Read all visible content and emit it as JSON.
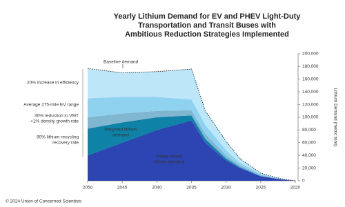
{
  "chart_data": {
    "type": "stacked-area",
    "title": [
      "Yearly Lithium Demand for EV and PHEV Light-Duty",
      "Transportation and Transit Buses with",
      "Ambitious Reduction Strategies Implemented"
    ],
    "y_label": "Lithium Demand (metric tons)",
    "x": [
      2020,
      2022,
      2025,
      2028,
      2030,
      2033,
      2035,
      2040,
      2045,
      2050
    ],
    "series": [
      {
        "color": "#2c45b3",
        "values": [
          0,
          2000,
          7000,
          20000,
          32000,
          60000,
          95000,
          80000,
          60000,
          40000
        ]
      },
      {
        "color": "#0f82a8",
        "values": [
          0,
          0,
          500,
          1500,
          3000,
          6000,
          8000,
          20000,
          32000,
          42000
        ]
      },
      {
        "color": "#80b6cf",
        "values": [
          0,
          500,
          1500,
          3000,
          5000,
          8000,
          8000,
          10000,
          14000,
          18000
        ]
      },
      {
        "color": "#8fd2ef",
        "values": [
          0,
          300,
          1500,
          4000,
          8000,
          14000,
          17000,
          22000,
          26000,
          30000
        ]
      },
      {
        "color": "#bde6f8",
        "values": [
          0,
          200,
          1500,
          6500,
          14000,
          22000,
          48000,
          40000,
          38000,
          47000
        ]
      }
    ],
    "baseline": {
      "name": "Baseline demand",
      "values": [
        0,
        3000,
        12000,
        35000,
        62000,
        110000,
        176000,
        172000,
        170000,
        177000
      ]
    },
    "annotations": [
      [
        "20% increase in efficiency"
      ],
      [
        "Average 275-mile EV range"
      ],
      [
        "30% reduction in VMT",
        "+1% density growth rate"
      ],
      [
        "90% lithium recycling",
        "recovery rate"
      ],
      [
        "Recycled lithium",
        "demand"
      ],
      [
        "Newly mined",
        "lithium demand"
      ]
    ],
    "xlim": [
      2020,
      2050
    ],
    "xticks": [
      2020,
      2025,
      2030,
      2035,
      2040,
      2045,
      2050
    ],
    "ylim": [
      0,
      200000
    ],
    "yticks": [
      0,
      {
        "value": 20000,
        "label": "20,000"
      },
      {
        "value": 40000,
        "label": "40,000"
      },
      {
        "value": 60000,
        "label": "60,000"
      },
      {
        "value": 80000,
        "label": "80,000"
      },
      {
        "value": 100000,
        "label": "100,000"
      },
      {
        "value": 120000,
        "label": "120,000"
      },
      {
        "value": 140000,
        "label": "140,000"
      },
      {
        "value": 160000,
        "label": "160,000"
      },
      {
        "value": 180000,
        "label": "180,000"
      },
      {
        "value": 200000,
        "label": "200,000"
      }
    ],
    "credit": "© 2024 Union of Concerned Scientists"
  }
}
